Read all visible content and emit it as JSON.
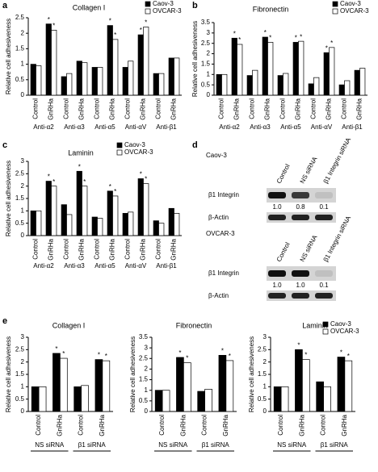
{
  "chart_data": [
    {
      "type": "bar",
      "panel": "a",
      "title": "Collagen I",
      "ylabel": "Relative cell adhesiveness",
      "categories": [
        "Control",
        "GnRHa",
        "Control",
        "GnRHa",
        "Control",
        "GnRHa",
        "Control",
        "GnRHa",
        "Control",
        "GnRHa"
      ],
      "group_labels": [
        "Anti-α2",
        "Anti-α3",
        "Anti-α5",
        "Anti-αV",
        "Anti-β1"
      ],
      "series": [
        {
          "name": "Caov-3",
          "color": "#000000",
          "values": [
            1.0,
            2.3,
            0.6,
            1.1,
            0.9,
            2.25,
            0.9,
            1.95,
            0.7,
            1.2
          ],
          "significant": [
            false,
            true,
            false,
            false,
            false,
            true,
            false,
            true,
            false,
            false
          ]
        },
        {
          "name": "OVCAR-3",
          "color": "#ffffff",
          "values": [
            0.95,
            2.1,
            0.7,
            1.05,
            0.9,
            1.8,
            1.1,
            2.2,
            0.7,
            1.2
          ],
          "significant": [
            false,
            true,
            false,
            false,
            false,
            true,
            false,
            true,
            false,
            false
          ]
        }
      ],
      "significance_marker": "*",
      "ylim": [
        0,
        2.5
      ],
      "yticks": [
        0,
        0.5,
        1,
        1.5,
        2,
        2.5
      ],
      "legend": "upper-right"
    },
    {
      "type": "bar",
      "panel": "b",
      "title": "Fibronectin",
      "ylabel": "Relative cell adhesiveness",
      "categories": [
        "Control",
        "GnRHa",
        "Control",
        "GnRHa",
        "Control",
        "GnRHa",
        "Control",
        "GnRHa",
        "Control",
        "GnRHa"
      ],
      "group_labels": [
        "Anti-α2",
        "Anti-α3",
        "Anti-α5",
        "Anti-αV",
        "Anti-β1"
      ],
      "series": [
        {
          "name": "Caov-3",
          "color": "#000000",
          "values": [
            1.0,
            2.75,
            0.95,
            2.8,
            0.95,
            2.55,
            0.55,
            2.05,
            0.5,
            1.2
          ],
          "significant": [
            false,
            true,
            false,
            true,
            false,
            true,
            false,
            true,
            false,
            false
          ]
        },
        {
          "name": "OVCAR-3",
          "color": "#ffffff",
          "values": [
            1.0,
            2.45,
            1.2,
            2.55,
            1.05,
            2.6,
            0.85,
            2.3,
            0.7,
            1.3
          ],
          "significant": [
            false,
            true,
            false,
            true,
            false,
            true,
            false,
            true,
            false,
            false
          ]
        }
      ],
      "significance_marker": "*",
      "ylim": [
        0,
        3.5
      ],
      "yticks": [
        0,
        0.5,
        1,
        1.5,
        2,
        2.5,
        3,
        3.5
      ],
      "legend": "upper-right"
    },
    {
      "type": "bar",
      "panel": "c",
      "title": "Laminin",
      "ylabel": "Relative cell adhesiveness",
      "categories": [
        "Control",
        "GnRHa",
        "Control",
        "GnRHa",
        "Control",
        "GnRHa",
        "Control",
        "GnRHa",
        "Control",
        "GnRHa"
      ],
      "group_labels": [
        "Anti-α2",
        "Anti-α3",
        "Anti-α5",
        "Anti-αV",
        "Anti-β1"
      ],
      "series": [
        {
          "name": "Caov-3",
          "color": "#000000",
          "values": [
            1.0,
            2.2,
            1.25,
            2.6,
            0.75,
            1.8,
            0.9,
            2.3,
            0.6,
            1.1
          ],
          "significant": [
            false,
            true,
            false,
            true,
            false,
            true,
            false,
            true,
            false,
            false
          ]
        },
        {
          "name": "OVCAR-3",
          "color": "#ffffff",
          "values": [
            1.0,
            2.0,
            0.85,
            2.0,
            0.7,
            1.6,
            0.95,
            2.1,
            0.5,
            0.9
          ],
          "significant": [
            false,
            true,
            false,
            true,
            false,
            true,
            false,
            true,
            false,
            false
          ]
        }
      ],
      "significance_marker": "*",
      "ylim": [
        0,
        3
      ],
      "yticks": [
        0,
        0.5,
        1,
        1.5,
        2,
        2.5,
        3
      ],
      "legend": "upper-center"
    },
    {
      "type": "bar",
      "panel": "e",
      "title": "Collagen I",
      "ylabel": "Relative cell adhesiveness",
      "categories": [
        "Control",
        "GnRHa",
        "Control",
        "GnRHa"
      ],
      "group_labels": [
        "NS siRNA",
        "β1 siRNA"
      ],
      "series": [
        {
          "color": "#000000",
          "values": [
            1.0,
            2.35,
            1.0,
            2.1
          ],
          "significant": [
            false,
            true,
            false,
            true
          ]
        },
        {
          "color": "#ffffff",
          "values": [
            1.0,
            2.15,
            1.05,
            2.05
          ],
          "significant": [
            false,
            true,
            false,
            true
          ]
        }
      ],
      "significance_marker": "*",
      "ylim": [
        0,
        3
      ],
      "yticks": [
        0,
        0.5,
        1,
        1.5,
        2,
        2.5,
        3
      ]
    },
    {
      "type": "bar",
      "title": "Fibronectin",
      "ylabel": "Relative cell adhesiveness",
      "categories": [
        "Control",
        "GnRHa",
        "Control",
        "GnRHa"
      ],
      "group_labels": [
        "NS siRNA",
        "β1 siRNA"
      ],
      "series": [
        {
          "color": "#000000",
          "values": [
            1.0,
            2.55,
            0.95,
            2.65
          ],
          "significant": [
            false,
            true,
            false,
            true
          ]
        },
        {
          "color": "#ffffff",
          "values": [
            1.0,
            2.3,
            1.05,
            2.4
          ],
          "significant": [
            false,
            true,
            false,
            true
          ]
        }
      ],
      "significance_marker": "*",
      "ylim": [
        0,
        3.5
      ],
      "yticks": [
        0,
        0.5,
        1,
        1.5,
        2,
        2.5,
        3,
        3.5
      ]
    },
    {
      "type": "bar",
      "title": "Laminin",
      "ylabel": "Relative cell adhesiveness",
      "categories": [
        "Control",
        "GnRHa",
        "Control",
        "GnRHa"
      ],
      "group_labels": [
        "NS siRNA",
        "β1 siRNA"
      ],
      "series": [
        {
          "name": "Caov-3",
          "color": "#000000",
          "values": [
            1.0,
            2.5,
            1.2,
            2.2
          ],
          "significant": [
            false,
            true,
            false,
            true
          ]
        },
        {
          "name": "OVCAR-3",
          "color": "#ffffff",
          "values": [
            1.0,
            2.1,
            1.0,
            2.05
          ],
          "significant": [
            false,
            true,
            false,
            true
          ]
        }
      ],
      "significance_marker": "*",
      "ylim": [
        0,
        3
      ],
      "yticks": [
        0,
        0.5,
        1,
        1.5,
        2,
        2.5,
        3
      ],
      "legend": "upper-right"
    }
  ],
  "blot": {
    "panel": "d",
    "blocks": [
      {
        "cell_line": "Caov-3",
        "columns": [
          "Control",
          "NS siRNA",
          "β1 Integrin siRNA"
        ],
        "target": {
          "label": "β1 Integrin",
          "values": [
            1.0,
            0.8,
            0.1
          ],
          "value_labels": [
            "1.0",
            "0.8",
            "0.1"
          ]
        },
        "loading": "β-Actin"
      },
      {
        "cell_line": "OVCAR-3",
        "columns": [
          "Control",
          "NS siRNA",
          "β1 Integrin siRNA"
        ],
        "target": {
          "label": "β1 Integrin",
          "values": [
            1.0,
            1.0,
            0.1
          ],
          "value_labels": [
            "1.0",
            "1.0",
            "0.1"
          ]
        },
        "loading": "β-Actin"
      }
    ]
  }
}
